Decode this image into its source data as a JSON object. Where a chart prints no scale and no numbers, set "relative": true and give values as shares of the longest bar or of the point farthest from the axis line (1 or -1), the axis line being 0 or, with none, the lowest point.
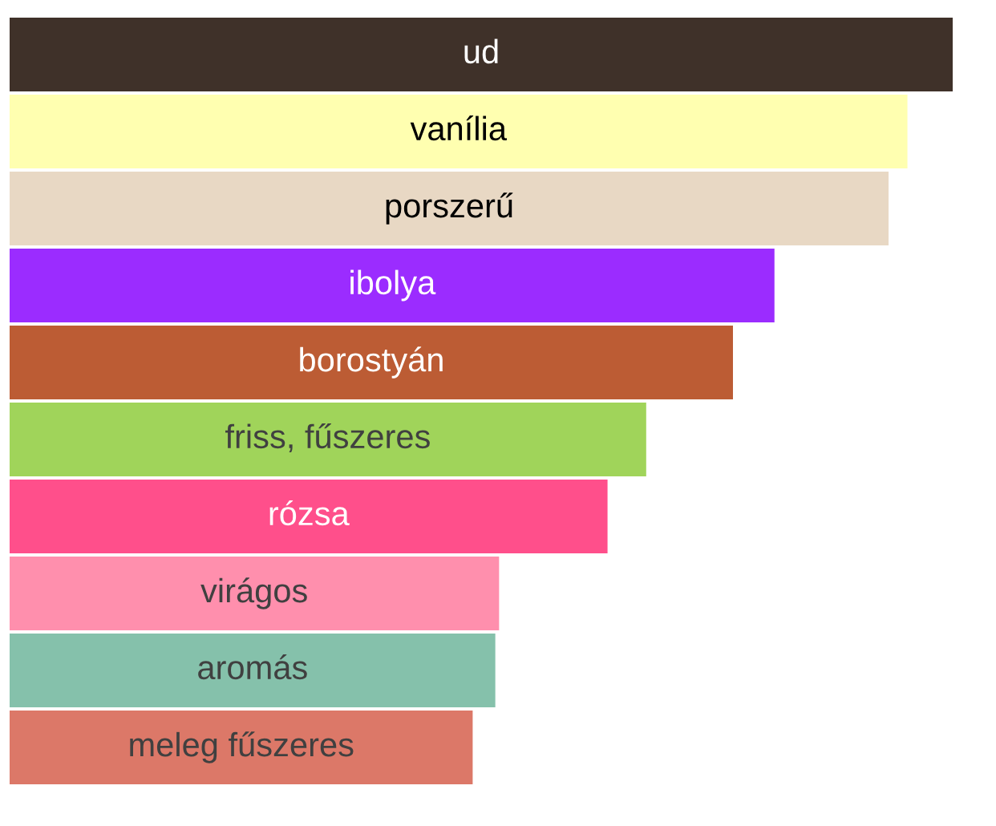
{
  "chart_data": {
    "type": "bar",
    "orientation": "horizontal",
    "relative": true,
    "categories": [
      "ud",
      "vanília",
      "porszerű",
      "ibolya",
      "borostyán",
      "friss, fűszeres",
      "rózsa",
      "virágos",
      "aromás",
      "meleg fűszeres"
    ],
    "values": [
      1,
      0.952,
      0.932,
      0.811,
      0.767,
      0.675,
      0.634,
      0.519,
      0.515,
      0.491
    ],
    "colors": [
      "#3f3129",
      "#ffffb0",
      "#e8d8c4",
      "#9b2cff",
      "#bc5c34",
      "#a0d45a",
      "#ff4f8b",
      "#ff8fad",
      "#85c1ab",
      "#dc7868"
    ],
    "legend": false
  }
}
